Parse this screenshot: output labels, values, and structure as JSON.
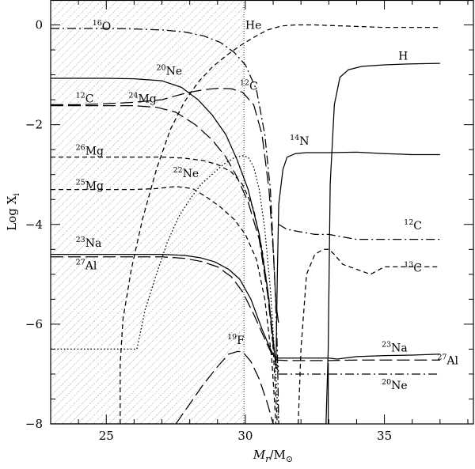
{
  "chart_data": {
    "type": "line",
    "title": "",
    "xlabel": {
      "italic": "M",
      "sub": "r",
      "rest": "/M",
      "sun_symbol": "⊙"
    },
    "ylabel": {
      "text": "Log X",
      "sub": "i"
    },
    "xlim": [
      23,
      38.2
    ],
    "ylim": [
      -8,
      0.5
    ],
    "xticks": [
      25,
      30,
      35
    ],
    "xtick_labels": [
      "25",
      "30",
      "35"
    ],
    "yticks": [
      0,
      -2,
      -4,
      -6,
      -8
    ],
    "ytick_labels": [
      "0",
      "−2",
      "−4",
      "−6",
      "−8"
    ],
    "shaded_region": {
      "x_end": 29.95,
      "pattern": "dotted hatch"
    },
    "series": [
      {
        "name": "H",
        "style": "solid",
        "x": [
          23,
          32.9,
          32.98,
          33.05,
          33.2,
          33.4,
          33.7,
          34.2,
          35,
          36,
          37
        ],
        "y": [
          -8,
          -8,
          -6.5,
          -3.2,
          -1.6,
          -1.05,
          -0.9,
          -0.83,
          -0.8,
          -0.78,
          -0.77
        ]
      },
      {
        "name": "He",
        "style": "dashed",
        "x": [
          25.5,
          25.5,
          25.6,
          25.9,
          26.3,
          26.8,
          27.3,
          27.8,
          28.3,
          28.8,
          29.3,
          29.8,
          30.3,
          30.8,
          31.3,
          31.8,
          32.5,
          33.5,
          35,
          37
        ],
        "y": [
          -8,
          -6.8,
          -5.9,
          -4.9,
          -3.9,
          -2.9,
          -2.1,
          -1.55,
          -1.15,
          -0.85,
          -0.62,
          -0.42,
          -0.25,
          -0.1,
          -0.02,
          0,
          0,
          -0.02,
          -0.05,
          -0.05
        ]
      },
      {
        "name": "¹⁶O",
        "style": "dash-dot",
        "x": [
          23,
          24,
          25,
          26,
          27,
          27.8,
          28.5,
          29.1,
          29.6,
          30,
          30.4,
          30.7,
          30.9,
          31.05,
          31.15,
          31.2
        ],
        "y": [
          -0.07,
          -0.07,
          -0.07,
          -0.08,
          -0.1,
          -0.14,
          -0.22,
          -0.35,
          -0.55,
          -0.8,
          -1.3,
          -2.2,
          -3.3,
          -5,
          -6.5,
          -8
        ]
      },
      {
        "name": "²⁰Ne",
        "style": "solid",
        "x": [
          23,
          24,
          25,
          26,
          27,
          27.7,
          28.3,
          28.8,
          29.3,
          29.7,
          30.1,
          30.5,
          30.8,
          31,
          31.1,
          31.2
        ],
        "y": [
          -1.07,
          -1.07,
          -1.07,
          -1.08,
          -1.12,
          -1.25,
          -1.5,
          -1.8,
          -2.2,
          -2.7,
          -3.3,
          -4.2,
          -5.3,
          -6.3,
          -6.85,
          -6.95
        ]
      },
      {
        "name": "²⁰Ne (envelope)",
        "style": "dash-dot",
        "x": [
          31.2,
          31.5,
          32,
          33,
          34,
          35,
          36,
          37
        ],
        "y": [
          -7,
          -7,
          -7,
          -7,
          -7,
          -7,
          -7,
          -7
        ]
      },
      {
        "name": "¹²C",
        "style": "long-dash",
        "x": [
          23,
          24,
          25,
          26,
          27,
          27.5,
          28,
          28.5,
          29,
          29.5,
          29.9,
          30.3,
          30.6,
          30.85,
          31,
          31.1,
          31.2
        ],
        "y": [
          -1.6,
          -1.6,
          -1.58,
          -1.55,
          -1.5,
          -1.42,
          -1.35,
          -1.3,
          -1.27,
          -1.28,
          -1.35,
          -1.6,
          -2.2,
          -3.3,
          -4.5,
          -5.6,
          -6
        ]
      },
      {
        "name": "¹²C (envelope)",
        "style": "dash-dot",
        "x": [
          31.2,
          31.5,
          32,
          32.5,
          33,
          33.5,
          34,
          35,
          36,
          37
        ],
        "y": [
          -4,
          -4.1,
          -4.15,
          -4.2,
          -4.2,
          -4.25,
          -4.3,
          -4.3,
          -4.3,
          -4.3
        ]
      },
      {
        "name": "²⁴Mg",
        "style": "long-dash",
        "x": [
          23,
          24,
          25,
          26,
          26.8,
          27.5,
          28.2,
          28.8,
          29.3,
          29.7,
          30.1,
          30.5,
          30.8,
          31,
          31.1,
          31.2
        ],
        "y": [
          -1.62,
          -1.62,
          -1.62,
          -1.62,
          -1.65,
          -1.75,
          -2,
          -2.3,
          -2.65,
          -3.05,
          -3.55,
          -4.3,
          -5.4,
          -6.4,
          -6.8,
          -6.85
        ]
      },
      {
        "name": "²⁶Mg",
        "style": "dashed",
        "x": [
          23,
          24,
          25,
          26,
          27,
          27.8,
          28.5,
          29,
          29.5,
          29.9,
          30.3,
          30.6,
          30.85,
          31,
          31.15
        ],
        "y": [
          -2.65,
          -2.65,
          -2.65,
          -2.65,
          -2.65,
          -2.67,
          -2.72,
          -2.8,
          -2.95,
          -3.2,
          -3.7,
          -4.5,
          -5.5,
          -6.5,
          -8
        ]
      },
      {
        "name": "²⁵Mg",
        "style": "dashed",
        "x": [
          23,
          24,
          25,
          26,
          26.8,
          27.5,
          28.1,
          28.6,
          29.1,
          29.6,
          30,
          30.4,
          30.7,
          30.95,
          31.1
        ],
        "y": [
          -3.3,
          -3.3,
          -3.3,
          -3.3,
          -3.28,
          -3.24,
          -3.28,
          -3.45,
          -3.65,
          -3.9,
          -4.2,
          -4.7,
          -5.5,
          -6.7,
          -8
        ]
      },
      {
        "name": "²²Ne",
        "style": "dotted",
        "x": [
          23,
          24,
          25,
          26.1,
          26.4,
          26.8,
          27.2,
          27.6,
          28,
          28.4,
          28.8,
          29.2,
          29.6,
          29.9,
          30.1,
          30.3,
          30.5,
          30.7,
          30.9,
          31.05,
          31.2
        ],
        "y": [
          -6.5,
          -6.5,
          -6.5,
          -6.5,
          -5.7,
          -5,
          -4.35,
          -3.85,
          -3.5,
          -3.2,
          -3,
          -2.8,
          -2.66,
          -2.62,
          -2.65,
          -2.85,
          -3.3,
          -4.1,
          -5.3,
          -6.6,
          -8
        ]
      },
      {
        "name": "¹⁴N",
        "style": "solid",
        "x": [
          31.1,
          31.15,
          31.2,
          31.35,
          31.5,
          31.8,
          32.2,
          33,
          34,
          35,
          36,
          37
        ],
        "y": [
          -6.9,
          -5,
          -3.6,
          -2.9,
          -2.65,
          -2.58,
          -2.56,
          -2.56,
          -2.55,
          -2.58,
          -2.6,
          -2.6
        ]
      },
      {
        "name": "¹³C",
        "style": "dashed",
        "x": [
          31.9,
          32,
          32.2,
          32.5,
          32.8,
          33,
          33.2,
          33.5,
          34,
          34.5,
          35,
          36,
          37
        ],
        "y": [
          -8,
          -6.5,
          -5,
          -4.6,
          -4.5,
          -4.5,
          -4.6,
          -4.8,
          -4.9,
          -5,
          -4.85,
          -4.85,
          -4.85
        ]
      },
      {
        "name": "²³Na",
        "style": "solid",
        "x": [
          23,
          24,
          25,
          26,
          27,
          27.8,
          28.4,
          28.9,
          29.4,
          29.8,
          30.2,
          30.6,
          30.9,
          31.05,
          31.2,
          31.5,
          32,
          33,
          33.3,
          34,
          35,
          36,
          37
        ],
        "y": [
          -4.6,
          -4.6,
          -4.6,
          -4.6,
          -4.6,
          -4.62,
          -4.67,
          -4.75,
          -4.9,
          -5.1,
          -5.5,
          -6.1,
          -6.5,
          -6.65,
          -6.68,
          -6.68,
          -6.68,
          -6.68,
          -6.7,
          -6.65,
          -6.63,
          -6.62,
          -6.6
        ]
      },
      {
        "name": "²⁷Al",
        "style": "long-dash",
        "x": [
          23,
          24,
          25,
          26,
          27,
          27.8,
          28.4,
          29,
          29.5,
          29.9,
          30.3,
          30.7,
          30.95,
          31.15,
          31.5,
          32,
          33,
          34,
          35,
          36,
          37
        ],
        "y": [
          -4.65,
          -4.65,
          -4.65,
          -4.65,
          -4.65,
          -4.68,
          -4.74,
          -4.85,
          -5.05,
          -5.35,
          -5.8,
          -6.3,
          -6.6,
          -6.72,
          -6.73,
          -6.73,
          -6.73,
          -6.72,
          -6.72,
          -6.72,
          -6.72
        ]
      },
      {
        "name": "¹⁹F",
        "style": "long-dash",
        "x": [
          27.5,
          28,
          28.5,
          29,
          29.4,
          29.7,
          29.9,
          30.2,
          30.5,
          30.8,
          31
        ],
        "y": [
          -8,
          -7.6,
          -7.2,
          -6.85,
          -6.6,
          -6.55,
          -6.55,
          -6.75,
          -7.1,
          -7.6,
          -8
        ]
      },
      {
        "name": "vertical boundary at 33.0",
        "style": "solid",
        "x": [
          32.98,
          32.98
        ],
        "y": [
          -8,
          -6.78
        ]
      }
    ],
    "annotations": [
      {
        "iso": "16",
        "el": "O",
        "x": 24.5,
        "y": -0.1
      },
      {
        "iso": "",
        "el": "He",
        "x": 30.0,
        "y": -0.08
      },
      {
        "iso": "",
        "el": "H",
        "x": 35.5,
        "y": -0.7
      },
      {
        "iso": "20",
        "el": "Ne",
        "x": 26.8,
        "y": -1.0
      },
      {
        "iso": "12",
        "el": "C",
        "x": 29.8,
        "y": -1.3
      },
      {
        "iso": "12",
        "el": "C",
        "x": 23.9,
        "y": -1.55
      },
      {
        "iso": "24",
        "el": "Mg",
        "x": 25.8,
        "y": -1.55
      },
      {
        "iso": "14",
        "el": "N",
        "x": 31.6,
        "y": -2.4
      },
      {
        "iso": "26",
        "el": "Mg",
        "x": 23.9,
        "y": -2.6
      },
      {
        "iso": "25",
        "el": "Mg",
        "x": 23.9,
        "y": -3.3
      },
      {
        "iso": "22",
        "el": "Ne",
        "x": 27.4,
        "y": -3.05
      },
      {
        "iso": "12",
        "el": "C",
        "x": 35.7,
        "y": -4.1
      },
      {
        "iso": "13",
        "el": "C",
        "x": 35.7,
        "y": -4.95
      },
      {
        "iso": "23",
        "el": "Na",
        "x": 23.9,
        "y": -4.45
      },
      {
        "iso": "27",
        "el": "Al",
        "x": 23.9,
        "y": -4.9
      },
      {
        "iso": "23",
        "el": "Na",
        "x": 34.9,
        "y": -6.55
      },
      {
        "iso": "27",
        "el": "Al",
        "x": 36.9,
        "y": -6.8
      },
      {
        "iso": "19",
        "el": "F",
        "x": 29.35,
        "y": -6.4
      },
      {
        "iso": "20",
        "el": "Ne",
        "x": 34.9,
        "y": -7.3
      }
    ],
    "grid": false,
    "legend": "none (inline labels)"
  }
}
